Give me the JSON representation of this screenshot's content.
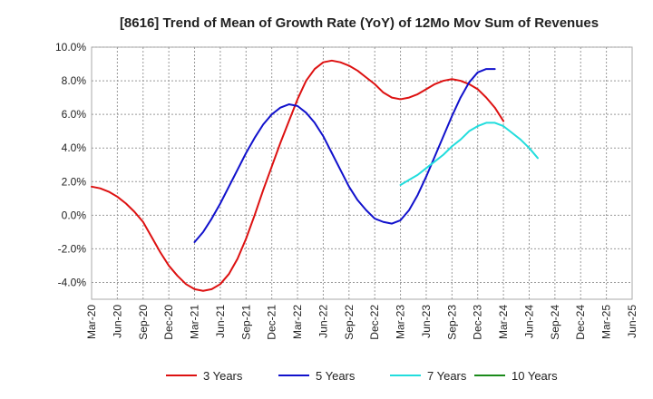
{
  "chart_data": {
    "type": "line",
    "title": "[8616]  Trend of Mean of Growth Rate (YoY) of 12Mo Mov Sum of Revenues",
    "xlabel": "",
    "ylabel": "",
    "ylim": [
      -5.0,
      10.0
    ],
    "yticks": [
      -4.0,
      -2.0,
      0.0,
      2.0,
      4.0,
      6.0,
      8.0,
      10.0
    ],
    "ytick_labels": [
      "-4.0%",
      "-2.0%",
      "0.0%",
      "2.0%",
      "4.0%",
      "6.0%",
      "8.0%",
      "10.0%"
    ],
    "xticks": [
      "Mar-20",
      "Jun-20",
      "Sep-20",
      "Dec-20",
      "Mar-21",
      "Jun-21",
      "Sep-21",
      "Dec-21",
      "Mar-22",
      "Jun-22",
      "Sep-22",
      "Dec-22",
      "Mar-23",
      "Jun-23",
      "Sep-23",
      "Dec-23",
      "Mar-24",
      "Jun-24",
      "Sep-24",
      "Dec-24",
      "Mar-25",
      "Jun-25"
    ],
    "grid": true,
    "legend_position": "bottom",
    "series": [
      {
        "name": "3 Years",
        "color": "#dd1111",
        "start_index": 0,
        "values": [
          1.7,
          1.6,
          1.4,
          1.1,
          0.7,
          0.2,
          -0.4,
          -1.3,
          -2.2,
          -3.0,
          -3.6,
          -4.1,
          -4.4,
          -4.5,
          -4.4,
          -4.1,
          -3.5,
          -2.6,
          -1.4,
          0.0,
          1.5,
          2.9,
          4.3,
          5.6,
          6.9,
          8.0,
          8.7,
          9.1,
          9.2,
          9.1,
          8.9,
          8.6,
          8.2,
          7.8,
          7.3,
          7.0,
          6.9,
          7.0,
          7.2,
          7.5,
          7.8,
          8.0,
          8.1,
          8.0,
          7.8,
          7.5,
          7.0,
          6.4,
          5.6
        ]
      },
      {
        "name": "5 Years",
        "color": "#1111cc",
        "start_index": 12,
        "values": [
          -1.6,
          -1.0,
          -0.2,
          0.7,
          1.7,
          2.7,
          3.7,
          4.6,
          5.4,
          6.0,
          6.4,
          6.6,
          6.5,
          6.1,
          5.5,
          4.7,
          3.7,
          2.7,
          1.7,
          0.9,
          0.3,
          -0.2,
          -0.4,
          -0.5,
          -0.3,
          0.3,
          1.2,
          2.3,
          3.5,
          4.7,
          5.9,
          7.0,
          7.9,
          8.5,
          8.7,
          8.7
        ]
      },
      {
        "name": "7 Years",
        "color": "#22dddd",
        "start_index": 36,
        "values": [
          1.8,
          2.1,
          2.4,
          2.8,
          3.2,
          3.6,
          4.1,
          4.5,
          5.0,
          5.3,
          5.5,
          5.5,
          5.3,
          4.9,
          4.5,
          4.0,
          3.4
        ]
      },
      {
        "name": "10 Years",
        "color": "#1a8a1a",
        "start_index": 0,
        "values": []
      }
    ]
  }
}
